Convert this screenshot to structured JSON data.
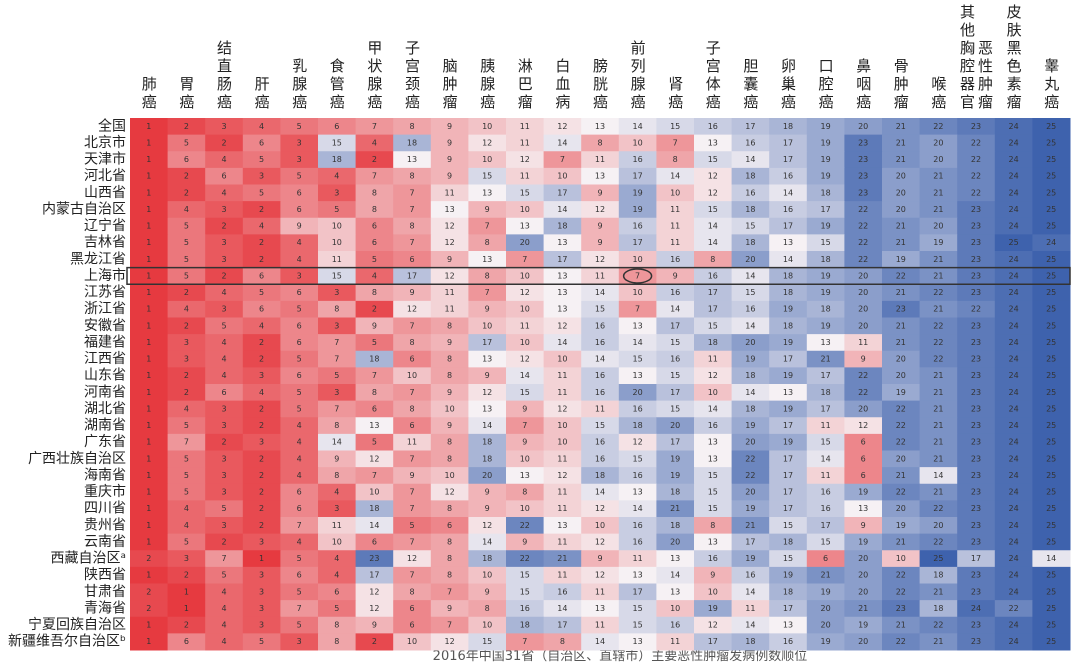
{
  "chart_data": {
    "type": "heatmap",
    "caption": "2016年中国31省（自治区、直辖市）主要恶性肿瘤发病例数顺位",
    "colors": [
      "#e63a40",
      "#f6f1f4",
      "#3e62ad"
    ],
    "columns": [
      "肺癌",
      "胃癌",
      "结直肠癌",
      "肝癌",
      "乳腺癌",
      "食管癌",
      "甲状腺癌",
      "子宫颈癌",
      "脑肿瘤",
      "胰腺癌",
      "淋巴瘤",
      "白血病",
      "膀胱癌",
      "前列腺癌",
      "肾癌",
      "子宫体癌",
      "胆囊癌",
      "卵巢癌",
      "口腔癌",
      "鼻咽癌",
      "骨肿瘤",
      "喉癌",
      "其他胸腔器官恶性肿瘤",
      "皮肤黑色素瘤",
      "睾丸癌"
    ],
    "rows": [
      "全国",
      "北京市",
      "天津市",
      "河北省",
      "山西省",
      "内蒙古自治区",
      "辽宁省",
      "吉林省",
      "黑龙江省",
      "上海市",
      "江苏省",
      "浙江省",
      "安徽省",
      "福建省",
      "江西省",
      "山东省",
      "河南省",
      "湖北省",
      "湖南省",
      "广东省",
      "广西壮族自治区",
      "海南省",
      "重庆市",
      "四川省",
      "贵州省",
      "云南省",
      "西藏自治区ᵃ",
      "陕西省",
      "甘肃省",
      "青海省",
      "宁夏回族自治区",
      "新疆维吾尔自治区ᵇ"
    ],
    "values": [
      [
        1,
        2,
        3,
        4,
        5,
        6,
        7,
        8,
        9,
        10,
        11,
        12,
        13,
        14,
        15,
        16,
        17,
        18,
        19,
        20,
        21,
        22,
        23,
        24,
        25
      ],
      [
        1,
        5,
        2,
        6,
        3,
        15,
        4,
        18,
        9,
        12,
        11,
        14,
        8,
        10,
        7,
        13,
        16,
        17,
        19,
        23,
        21,
        20,
        22,
        24,
        25
      ],
      [
        1,
        6,
        4,
        5,
        3,
        18,
        2,
        13,
        9,
        10,
        12,
        7,
        11,
        16,
        8,
        15,
        14,
        17,
        19,
        23,
        21,
        20,
        22,
        24,
        25
      ],
      [
        1,
        2,
        6,
        3,
        5,
        4,
        7,
        8,
        9,
        15,
        11,
        10,
        13,
        17,
        14,
        12,
        18,
        16,
        19,
        23,
        20,
        21,
        22,
        24,
        25
      ],
      [
        1,
        2,
        4,
        5,
        6,
        3,
        8,
        7,
        11,
        13,
        15,
        17,
        9,
        19,
        10,
        12,
        16,
        14,
        18,
        23,
        20,
        21,
        22,
        24,
        25
      ],
      [
        1,
        4,
        3,
        2,
        6,
        5,
        8,
        7,
        13,
        9,
        10,
        14,
        12,
        19,
        11,
        15,
        18,
        16,
        17,
        22,
        20,
        21,
        23,
        24,
        25
      ],
      [
        1,
        5,
        2,
        4,
        9,
        10,
        6,
        8,
        12,
        7,
        13,
        18,
        9,
        16,
        11,
        14,
        15,
        17,
        19,
        22,
        21,
        20,
        23,
        24,
        25
      ],
      [
        1,
        5,
        3,
        2,
        4,
        10,
        6,
        7,
        12,
        8,
        20,
        13,
        9,
        17,
        11,
        14,
        18,
        13,
        15,
        22,
        21,
        19,
        23,
        25,
        24
      ],
      [
        1,
        5,
        3,
        2,
        4,
        11,
        5,
        6,
        9,
        13,
        7,
        17,
        12,
        10,
        16,
        8,
        20,
        14,
        18,
        22,
        19,
        21,
        23,
        24,
        25
      ],
      [
        1,
        5,
        2,
        6,
        3,
        15,
        4,
        17,
        12,
        8,
        10,
        13,
        11,
        7,
        9,
        16,
        14,
        18,
        19,
        20,
        22,
        21,
        23,
        24,
        25
      ],
      [
        1,
        2,
        4,
        5,
        6,
        3,
        8,
        9,
        11,
        7,
        12,
        13,
        14,
        10,
        16,
        17,
        15,
        18,
        19,
        20,
        21,
        22,
        23,
        24,
        25
      ],
      [
        1,
        4,
        3,
        6,
        5,
        8,
        2,
        12,
        11,
        9,
        10,
        13,
        15,
        7,
        14,
        17,
        16,
        19,
        18,
        20,
        23,
        21,
        22,
        24,
        25
      ],
      [
        1,
        2,
        5,
        4,
        6,
        3,
        9,
        7,
        8,
        10,
        11,
        12,
        16,
        13,
        17,
        15,
        14,
        18,
        19,
        20,
        21,
        22,
        23,
        24,
        25
      ],
      [
        1,
        3,
        4,
        2,
        6,
        7,
        5,
        8,
        9,
        17,
        10,
        14,
        16,
        14,
        15,
        18,
        20,
        19,
        13,
        11,
        21,
        22,
        23,
        24,
        25
      ],
      [
        1,
        3,
        4,
        2,
        5,
        7,
        18,
        6,
        8,
        13,
        12,
        10,
        14,
        15,
        16,
        11,
        19,
        17,
        21,
        9,
        20,
        22,
        23,
        24,
        25
      ],
      [
        1,
        2,
        4,
        3,
        6,
        5,
        7,
        10,
        8,
        9,
        14,
        11,
        16,
        13,
        15,
        12,
        18,
        19,
        17,
        22,
        20,
        21,
        23,
        24,
        25
      ],
      [
        1,
        2,
        6,
        4,
        5,
        3,
        8,
        7,
        9,
        12,
        15,
        11,
        16,
        20,
        17,
        10,
        14,
        13,
        18,
        22,
        19,
        21,
        23,
        24,
        25
      ],
      [
        1,
        4,
        3,
        2,
        5,
        7,
        6,
        8,
        10,
        13,
        9,
        12,
        11,
        16,
        15,
        14,
        18,
        19,
        17,
        20,
        22,
        21,
        23,
        24,
        25
      ],
      [
        1,
        5,
        3,
        2,
        4,
        8,
        13,
        6,
        9,
        14,
        7,
        10,
        15,
        18,
        20,
        16,
        19,
        17,
        11,
        12,
        22,
        21,
        23,
        24,
        25
      ],
      [
        1,
        7,
        2,
        3,
        4,
        14,
        5,
        11,
        8,
        18,
        9,
        10,
        16,
        12,
        17,
        13,
        20,
        19,
        15,
        6,
        22,
        21,
        23,
        24,
        25
      ],
      [
        1,
        5,
        3,
        2,
        4,
        9,
        12,
        7,
        8,
        18,
        10,
        11,
        16,
        15,
        19,
        13,
        22,
        17,
        14,
        6,
        20,
        21,
        23,
        24,
        25
      ],
      [
        1,
        5,
        3,
        2,
        4,
        8,
        7,
        9,
        10,
        20,
        13,
        12,
        18,
        16,
        19,
        15,
        22,
        17,
        11,
        6,
        21,
        14,
        23,
        24,
        25
      ],
      [
        1,
        5,
        3,
        2,
        6,
        4,
        10,
        7,
        12,
        9,
        8,
        11,
        14,
        13,
        18,
        15,
        20,
        17,
        16,
        19,
        22,
        21,
        23,
        24,
        25
      ],
      [
        1,
        4,
        5,
        2,
        6,
        3,
        18,
        7,
        8,
        9,
        10,
        11,
        12,
        14,
        21,
        15,
        19,
        17,
        16,
        13,
        20,
        22,
        23,
        24,
        25
      ],
      [
        1,
        4,
        3,
        2,
        7,
        11,
        14,
        5,
        6,
        12,
        22,
        13,
        10,
        16,
        18,
        8,
        21,
        15,
        17,
        9,
        19,
        20,
        23,
        24,
        25
      ],
      [
        1,
        5,
        2,
        3,
        4,
        10,
        6,
        7,
        8,
        14,
        9,
        11,
        12,
        16,
        20,
        13,
        17,
        18,
        15,
        19,
        21,
        22,
        23,
        24,
        25
      ],
      [
        2,
        3,
        7,
        1,
        5,
        4,
        23,
        12,
        8,
        18,
        22,
        21,
        9,
        11,
        13,
        16,
        19,
        15,
        6,
        20,
        10,
        25,
        17,
        24,
        14
      ],
      [
        1,
        2,
        5,
        3,
        6,
        4,
        17,
        7,
        8,
        10,
        15,
        11,
        12,
        13,
        14,
        9,
        16,
        19,
        21,
        20,
        22,
        18,
        23,
        24,
        25
      ],
      [
        2,
        1,
        4,
        3,
        5,
        6,
        12,
        8,
        7,
        9,
        15,
        16,
        11,
        17,
        13,
        10,
        14,
        18,
        19,
        20,
        22,
        21,
        23,
        24,
        25
      ],
      [
        2,
        1,
        4,
        3,
        7,
        5,
        12,
        6,
        9,
        8,
        16,
        14,
        13,
        15,
        10,
        19,
        11,
        17,
        20,
        21,
        23,
        18,
        24,
        22,
        25
      ],
      [
        1,
        2,
        4,
        3,
        5,
        8,
        9,
        6,
        7,
        10,
        18,
        17,
        11,
        15,
        16,
        12,
        14,
        13,
        20,
        19,
        21,
        22,
        23,
        24,
        25
      ],
      [
        1,
        6,
        4,
        5,
        3,
        8,
        2,
        10,
        12,
        15,
        7,
        8,
        14,
        13,
        11,
        17,
        18,
        16,
        19,
        20,
        22,
        21,
        23,
        24,
        25
      ]
    ]
  }
}
